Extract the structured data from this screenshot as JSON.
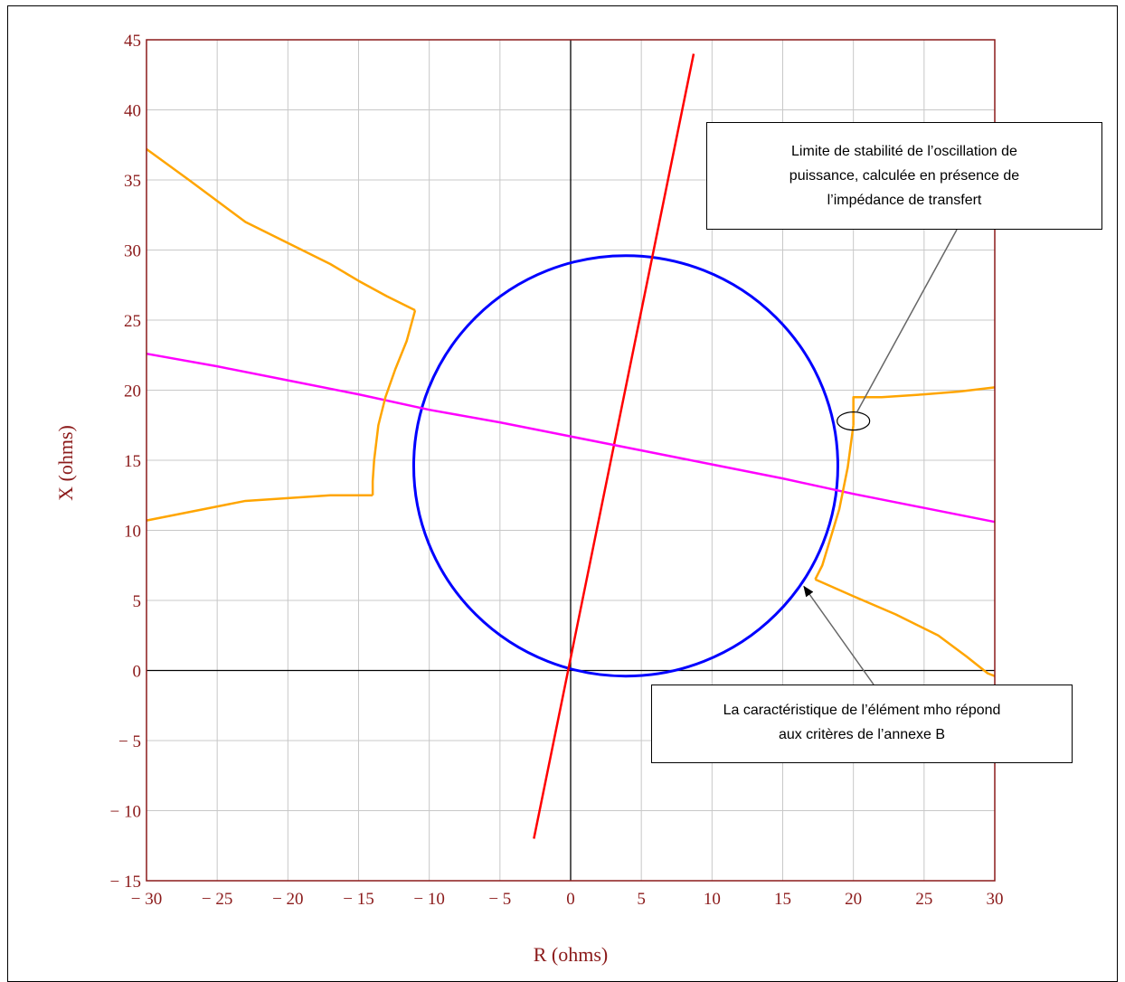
{
  "chart_data": {
    "type": "line",
    "xlabel": "R (ohms)",
    "ylabel": "X (ohms)",
    "xlim": [
      -30,
      30
    ],
    "ylim": [
      -15,
      45
    ],
    "x_ticks": [
      -30,
      -25,
      -20,
      -15,
      -10,
      -5,
      0,
      5,
      10,
      15,
      20,
      25,
      30
    ],
    "y_ticks": [
      -15,
      -10,
      -5,
      0,
      5,
      10,
      15,
      20,
      25,
      30,
      35,
      40,
      45
    ],
    "x_tick_labels": [
      "− 30",
      "− 25",
      "− 20",
      "− 15",
      "− 10",
      "− 5",
      "0",
      "5",
      "10",
      "15",
      "20",
      "25",
      "30"
    ],
    "y_tick_labels": [
      "− 15",
      "− 10",
      "− 5",
      "0",
      "5",
      "10",
      "15",
      "20",
      "25",
      "30",
      "35",
      "40",
      "45"
    ],
    "grid": true,
    "colors": {
      "axes_text": "#8b1a1a",
      "frame": "#8b1a1a",
      "grid": "#c8c8c8",
      "zero_axes": "#000000",
      "mho_circle": "#0000ff",
      "line_impedance": "#ff0000",
      "magenta_line": "#ff00ff",
      "stability_limit": "#ffa500"
    },
    "series": [
      {
        "key": "mho_circle",
        "shape": "circle",
        "center": [
          3.9,
          14.6
        ],
        "radius": 15.0
      },
      {
        "key": "line_impedance",
        "x": [
          -2.6,
          8.7
        ],
        "y": [
          -12,
          44
        ]
      },
      {
        "key": "magenta_line",
        "x": [
          -30,
          -25,
          -20,
          -15,
          -10,
          -5,
          0,
          5,
          10,
          15,
          20,
          25,
          30
        ],
        "y": [
          22.6,
          21.7,
          20.7,
          19.7,
          18.6,
          17.7,
          16.7,
          15.7,
          14.7,
          13.7,
          12.6,
          11.6,
          10.6
        ]
      },
      {
        "key": "stability_limit_upper_left",
        "x": [
          -30,
          -27,
          -25,
          -23,
          -20,
          -17,
          -15,
          -13,
          -11
        ],
        "y": [
          37.2,
          35.0,
          33.5,
          32.0,
          30.5,
          29.0,
          27.8,
          26.7,
          25.7
        ]
      },
      {
        "key": "stability_limit_left_arc",
        "x": [
          -11,
          -11.6,
          -12.4,
          -13.1,
          -13.6,
          -13.9,
          -14.0,
          -14.0
        ],
        "y": [
          25.7,
          23.5,
          21.5,
          19.5,
          17.5,
          15.0,
          13.5,
          12.5
        ]
      },
      {
        "key": "stability_limit_lower_left",
        "x": [
          -14.0,
          -17,
          -20,
          -23,
          -26,
          -30
        ],
        "y": [
          12.5,
          12.5,
          12.3,
          12.1,
          11.5,
          10.7
        ]
      },
      {
        "key": "stability_limit_right_upper",
        "x": [
          20.0,
          20.0,
          22,
          25,
          27.5,
          30
        ],
        "y": [
          17.5,
          19.5,
          19.5,
          19.7,
          19.9,
          20.2
        ]
      },
      {
        "key": "stability_limit_right_arc",
        "x": [
          20.0,
          19.6,
          19.0,
          18.4,
          17.8,
          17.3
        ],
        "y": [
          17.5,
          14.5,
          11.5,
          9.5,
          7.5,
          6.5
        ]
      },
      {
        "key": "stability_limit_right_lower",
        "x": [
          17.3,
          20,
          23,
          26,
          28,
          29.5,
          30
        ],
        "y": [
          6.5,
          5.3,
          4.0,
          2.5,
          1.0,
          -0.2,
          -0.4
        ]
      }
    ],
    "annotations": [
      {
        "key": "stability",
        "lines": [
          "Limite de stabilité de l’oscillation de",
          "puissance, calculée en présence de",
          "l’impédance de transfert"
        ],
        "target": [
          20.0,
          17.8
        ]
      },
      {
        "key": "mho",
        "lines": [
          "La caractéristique de l’élément mho répond",
          "aux critères de l’annexe B"
        ],
        "target": [
          16.5,
          6.0
        ]
      }
    ]
  }
}
